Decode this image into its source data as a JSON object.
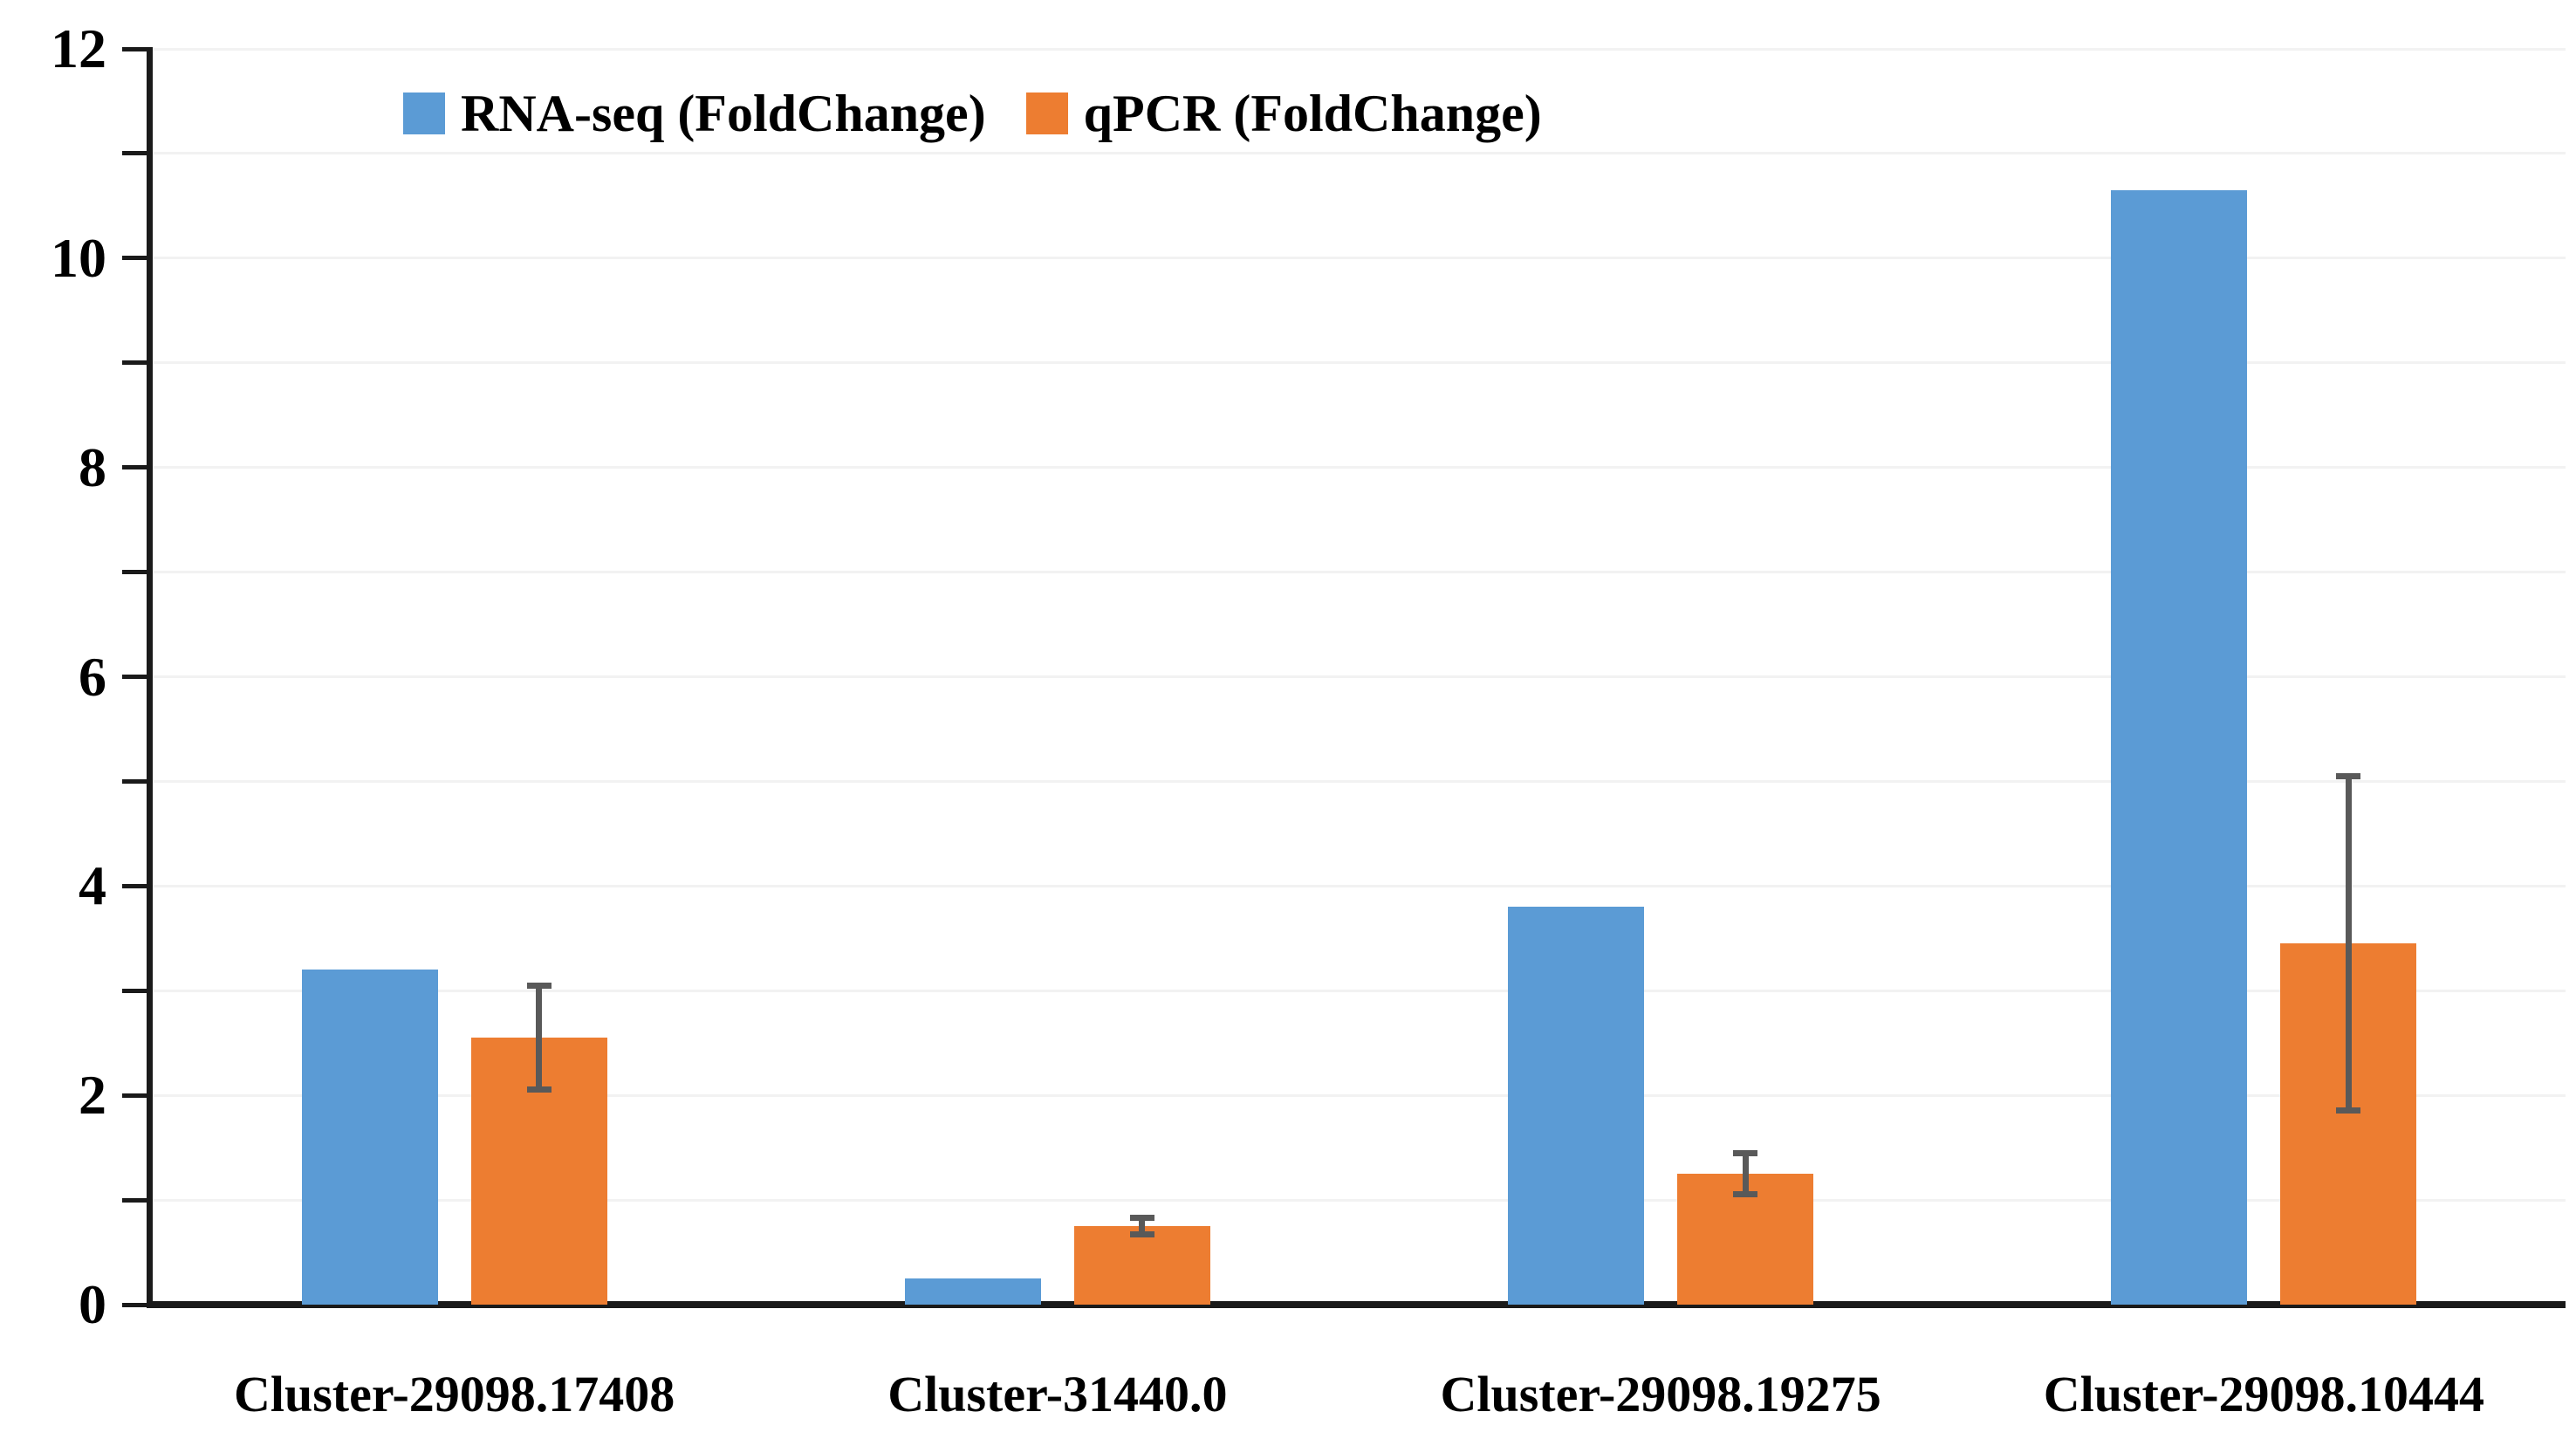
{
  "legend": {
    "items": [
      {
        "label": "RNA-seq (FoldChange)",
        "color": "#5B9BD5"
      },
      {
        "label": "qPCR (FoldChange)",
        "color": "#ED7D31"
      }
    ]
  },
  "y_axis": {
    "tick_labels": [
      "0",
      "2",
      "4",
      "6",
      "8",
      "10",
      "12"
    ],
    "min": 0,
    "max": 12
  },
  "chart_data": {
    "type": "bar",
    "title": "",
    "xlabel": "",
    "ylabel": "",
    "categories": [
      "Cluster-29098.17408",
      "Cluster-31440.0",
      "Cluster-29098.19275",
      "Cluster-29098.10444"
    ],
    "series": [
      {
        "name": "RNA-seq (FoldChange)",
        "color": "#5B9BD5",
        "values": [
          3.2,
          0.25,
          3.8,
          10.65
        ]
      },
      {
        "name": "qPCR (FoldChange)",
        "color": "#ED7D31",
        "values": [
          2.55,
          0.75,
          1.25,
          3.45
        ],
        "error_bars": [
          0.5,
          0.08,
          0.2,
          1.6
        ],
        "error_color": "#595959"
      }
    ],
    "ylim": [
      0,
      12
    ],
    "y_major_tick_step": 2,
    "y_minor_tick_step": 1,
    "grid": true,
    "gridline_color": "#f2f2f2",
    "legend_position": "top-center"
  }
}
